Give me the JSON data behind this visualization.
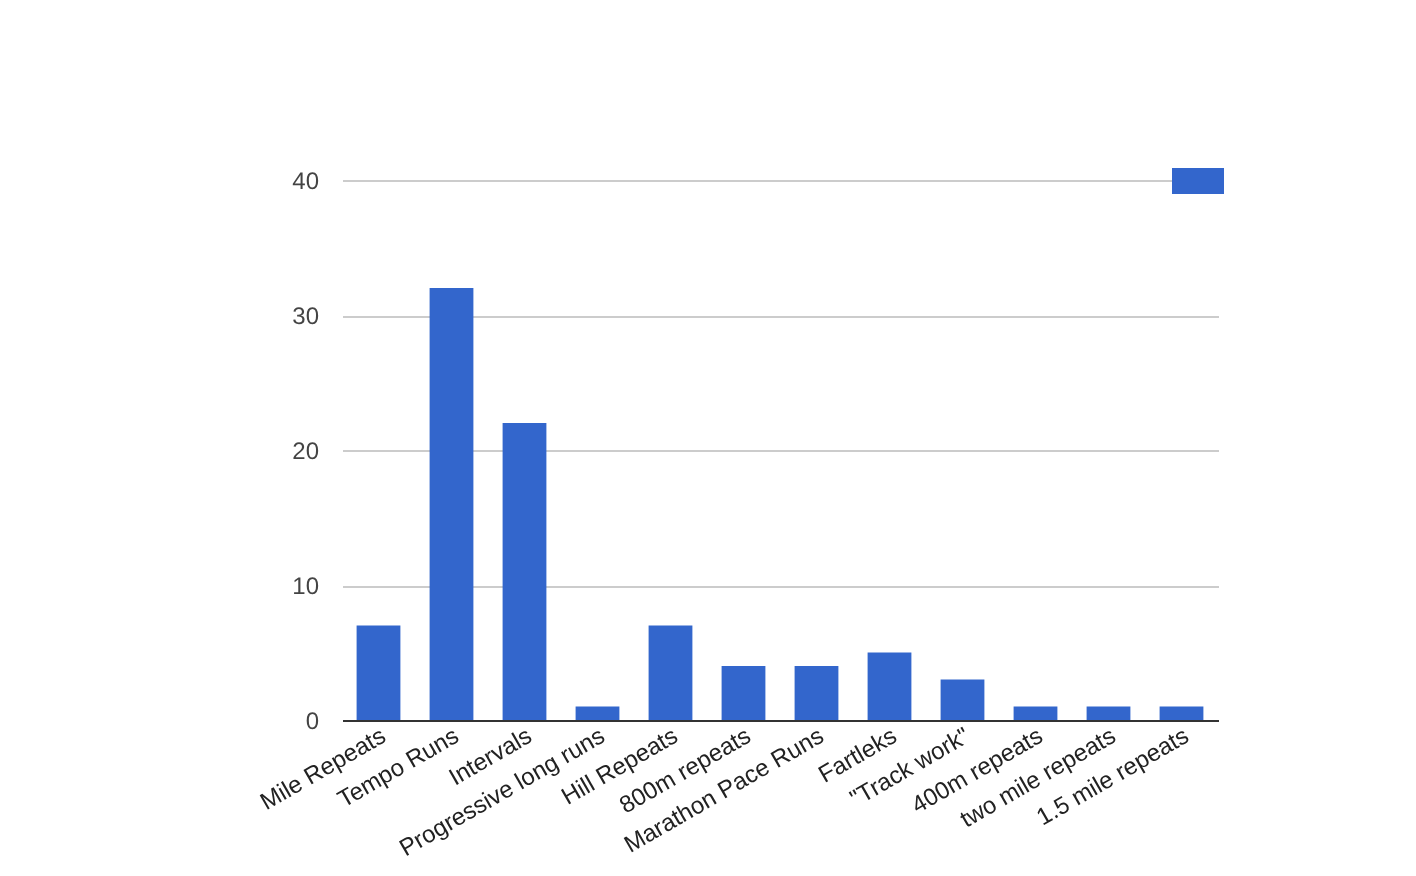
{
  "chart_data": {
    "type": "bar",
    "categories": [
      "Mile Repeats",
      "Tempo Runs",
      "Intervals",
      "Progressive long runs",
      "Hill Repeats",
      "800m repeats",
      "Marathon Pace Runs",
      "Fartleks",
      "\"Track work\"",
      "400m repeats",
      "two mile repeats",
      "1.5 mile repeats"
    ],
    "series": [
      {
        "color": "#3366cc",
        "values": [
          7,
          32,
          22,
          1,
          7,
          4,
          4,
          5,
          3,
          1,
          1,
          1
        ]
      }
    ],
    "ylim": [
      0,
      40
    ],
    "yticks": [
      0,
      10,
      20,
      30,
      40
    ],
    "grid": true
  }
}
